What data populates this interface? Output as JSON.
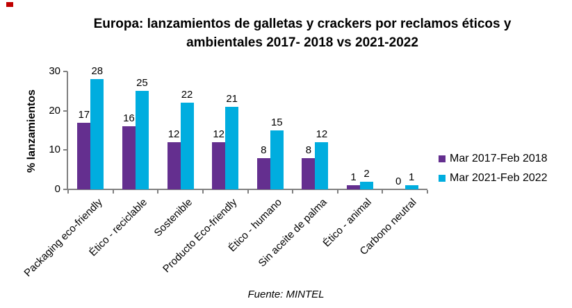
{
  "icon": {
    "name": "red-marker",
    "color": "#C00000"
  },
  "title": {
    "line1": "Europa: lanzamientos de galletas y crackers por reclamos éticos y",
    "line2": "ambientales 2017- 2018 vs 2021-2022"
  },
  "chart_data": {
    "type": "bar",
    "title": "Europa: lanzamientos de galletas y crackers por reclamos éticos y ambientales 2017- 2018 vs 2021-2022",
    "xlabel": "",
    "ylabel": "% lanzamientos",
    "ylim": [
      0,
      30
    ],
    "yticks": [
      0,
      10,
      20,
      30
    ],
    "grid": false,
    "legend_position": "right",
    "categories": [
      "Packaging eco-friendly",
      "Ético - reciclable",
      "Sostenible",
      "Producto Eco-friendly",
      "Ético - humano",
      "Sin aceite de palma",
      "Ético - animal",
      "Carbono neutral"
    ],
    "series": [
      {
        "name": "Mar 2017-Feb 2018",
        "color": "#642F8F",
        "values": [
          17,
          16,
          12,
          12,
          8,
          8,
          1,
          0
        ]
      },
      {
        "name": "Mar 2021-Feb 2022",
        "color": "#00ADDF",
        "values": [
          28,
          25,
          22,
          21,
          15,
          12,
          2,
          1
        ]
      }
    ]
  },
  "footer": {
    "source": "Fuente: MINTEL"
  },
  "colors": {
    "axis": "#808080",
    "text": "#000000"
  }
}
